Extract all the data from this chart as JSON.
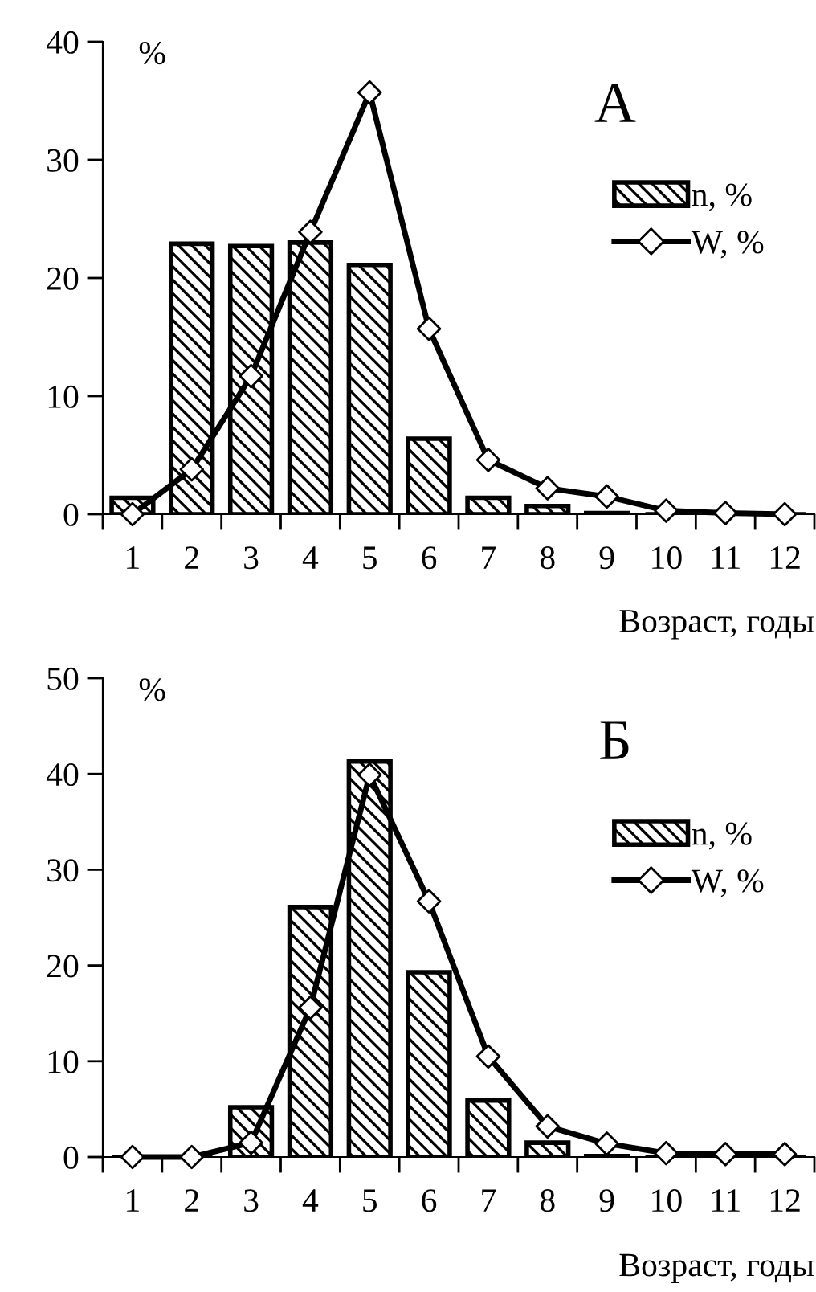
{
  "chart_data": [
    {
      "type": "bar",
      "title": "А",
      "ylabel": "%",
      "xlabel": "Возраст, годы",
      "categories": [
        "1",
        "2",
        "3",
        "4",
        "5",
        "6",
        "7",
        "8",
        "9",
        "10",
        "11",
        "12"
      ],
      "series": [
        {
          "name": "n, %",
          "color": "#000000",
          "values": [
            1.4,
            22.9,
            22.7,
            23.0,
            21.1,
            6.4,
            1.4,
            0.7,
            0.1,
            0,
            0,
            0
          ]
        },
        {
          "name": "W, %",
          "type": "line",
          "color": "#000000",
          "values": [
            0,
            3.8,
            11.7,
            23.9,
            35.7,
            15.7,
            4.6,
            2.2,
            1.5,
            0.3,
            0.1,
            0
          ]
        }
      ],
      "ylim": [
        0,
        40
      ],
      "yticks": [
        0,
        10,
        20,
        30,
        40
      ],
      "marker": "diamond",
      "legend": "right",
      "grid": false
    },
    {
      "type": "bar",
      "title": "Б",
      "ylabel": "%",
      "xlabel": "Возраст, годы",
      "categories": [
        "1",
        "2",
        "3",
        "4",
        "5",
        "6",
        "7",
        "8",
        "9",
        "10",
        "11",
        "12"
      ],
      "series": [
        {
          "name": "n, %",
          "color": "#000000",
          "values": [
            0,
            0,
            5.2,
            26.1,
            41.3,
            19.3,
            5.9,
            1.5,
            0.1,
            0,
            0,
            0
          ]
        },
        {
          "name": "W, %",
          "type": "line",
          "color": "#000000",
          "values": [
            0,
            0,
            1.5,
            15.6,
            39.9,
            26.7,
            10.5,
            3.2,
            1.4,
            0.4,
            0.3,
            0.3
          ]
        }
      ],
      "ylim": [
        0,
        50
      ],
      "yticks": [
        0,
        10,
        20,
        30,
        40,
        50
      ],
      "marker": "diamond",
      "legend": "right",
      "grid": false
    }
  ]
}
